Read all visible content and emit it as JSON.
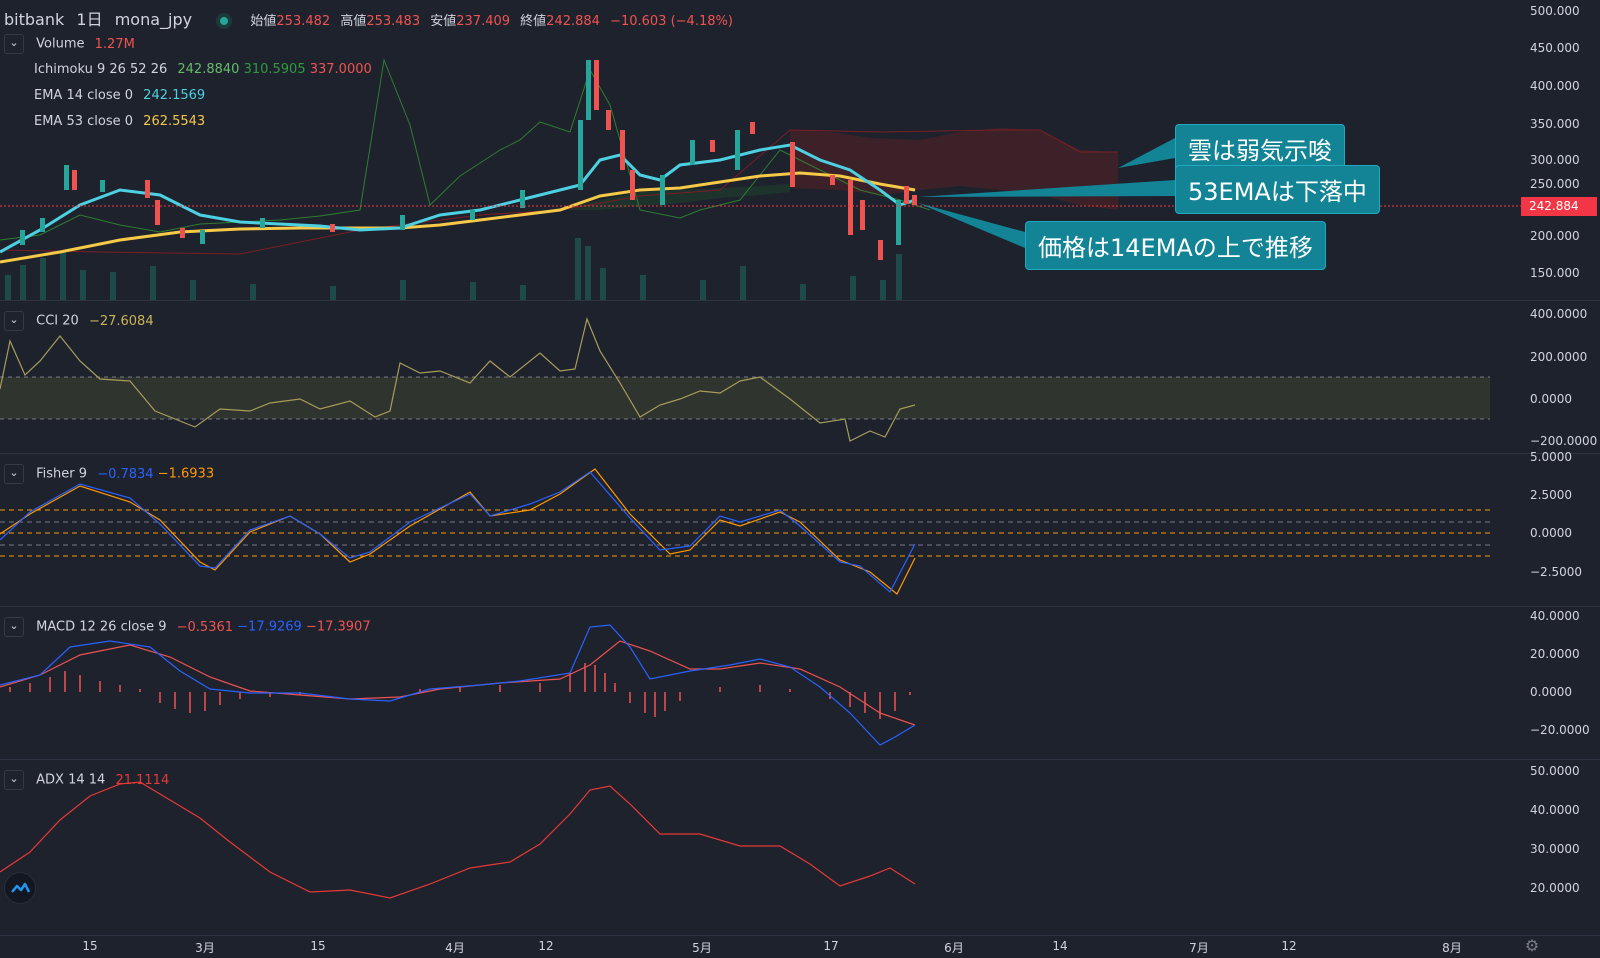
{
  "header": {
    "exchange": "bitbank",
    "interval": "1日",
    "symbol": "mona_jpy",
    "open_label": "始値",
    "open": "253.482",
    "high_label": "高値",
    "high": "253.483",
    "low_label": "安値",
    "low": "237.409",
    "close_label": "終値",
    "close": "242.884",
    "change": "−10.603 (−4.18%)"
  },
  "main_legend": {
    "volume_label": "Volume",
    "volume_value": "1.27M",
    "ichimoku_label": "Ichimoku 9 26 52 26",
    "ichimoku_v1": "242.8840",
    "ichimoku_v2": "310.5905",
    "ichimoku_v3": "337.0000",
    "ema14_label": "EMA 14 close 0",
    "ema14_value": "242.1569",
    "ema53_label": "EMA 53 close 0",
    "ema53_value": "262.5543"
  },
  "price_axis": [
    "500.000",
    "450.000",
    "400.000",
    "350.000",
    "300.000",
    "250.000",
    "200.000",
    "150.000"
  ],
  "last_price": "242.884",
  "annotations": {
    "cloud": "雲は弱気示唆",
    "ema53": "53EMAは下落中",
    "price": "価格は14EMAの上で推移"
  },
  "cci": {
    "label": "CCI 20",
    "value": "−27.6084",
    "axis": [
      "400.0000",
      "200.0000",
      "0.0000",
      "−200.0000"
    ]
  },
  "fisher": {
    "label": "Fisher 9",
    "v1": "−0.7834",
    "v2": "−1.6933",
    "axis": [
      "5.0000",
      "2.5000",
      "0.0000",
      "−2.5000"
    ]
  },
  "macd": {
    "label": "MACD 12 26 close 9",
    "v1": "−0.5361",
    "v2": "−17.9269",
    "v3": "−17.3907",
    "axis": [
      "40.0000",
      "20.0000",
      "0.0000",
      "−20.0000"
    ]
  },
  "adx": {
    "label": "ADX 14 14",
    "value": "21.1114",
    "axis": [
      "50.0000",
      "40.0000",
      "30.0000",
      "20.0000"
    ]
  },
  "time_axis": [
    "15",
    "3月",
    "15",
    "4月",
    "12",
    "5月",
    "17",
    "6月",
    "14",
    "7月",
    "12",
    "8月"
  ],
  "colors": {
    "up": "#26a69a",
    "down": "#ef5350",
    "ema14": "#4dd0e1",
    "ema53": "#f7c948",
    "accent": "#138495"
  }
}
